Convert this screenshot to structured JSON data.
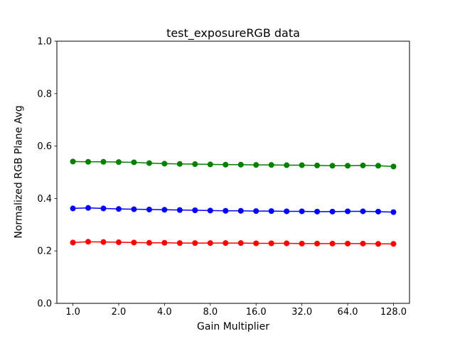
{
  "chart_data": {
    "type": "line",
    "title": "test_exposureRGB data",
    "xlabel": "Gain Multiplier",
    "ylabel": "Normalized RGB Plane Avg",
    "x_scale": "log2",
    "xlim": [
      1.0,
      128.0
    ],
    "ylim": [
      0.0,
      1.0
    ],
    "grid": false,
    "marker": "circle",
    "xticks": {
      "values": [
        1,
        2,
        4,
        8,
        16,
        32,
        64,
        128
      ],
      "labels": [
        "1.0",
        "2.0",
        "4.0",
        "8.0",
        "16.0",
        "32.0",
        "64.0",
        "128.0"
      ]
    },
    "yticks": {
      "values": [
        0.0,
        0.2,
        0.4,
        0.6,
        0.8,
        1.0
      ],
      "labels": [
        "0.0",
        "0.2",
        "0.4",
        "0.6",
        "0.8",
        "1.0"
      ]
    },
    "x": [
      1.0,
      1.26,
      1.587,
      2.0,
      2.52,
      3.175,
      4.0,
      5.04,
      6.35,
      8.0,
      10.08,
      12.7,
      16.0,
      20.16,
      25.4,
      32.0,
      40.32,
      50.8,
      64.0,
      80.63,
      101.6,
      128.0
    ],
    "series": [
      {
        "name": "red",
        "color": "#ff0000",
        "values": [
          0.232,
          0.235,
          0.234,
          0.233,
          0.232,
          0.231,
          0.231,
          0.23,
          0.23,
          0.23,
          0.23,
          0.23,
          0.229,
          0.229,
          0.229,
          0.228,
          0.228,
          0.228,
          0.228,
          0.228,
          0.227,
          0.227
        ]
      },
      {
        "name": "green",
        "color": "#008000",
        "values": [
          0.541,
          0.54,
          0.54,
          0.539,
          0.538,
          0.535,
          0.533,
          0.532,
          0.531,
          0.53,
          0.529,
          0.529,
          0.528,
          0.528,
          0.527,
          0.527,
          0.526,
          0.525,
          0.525,
          0.526,
          0.525,
          0.522
        ]
      },
      {
        "name": "blue",
        "color": "#0000ff",
        "values": [
          0.362,
          0.364,
          0.362,
          0.36,
          0.359,
          0.358,
          0.357,
          0.356,
          0.355,
          0.354,
          0.353,
          0.353,
          0.352,
          0.352,
          0.351,
          0.351,
          0.35,
          0.35,
          0.351,
          0.351,
          0.35,
          0.348
        ]
      }
    ]
  }
}
